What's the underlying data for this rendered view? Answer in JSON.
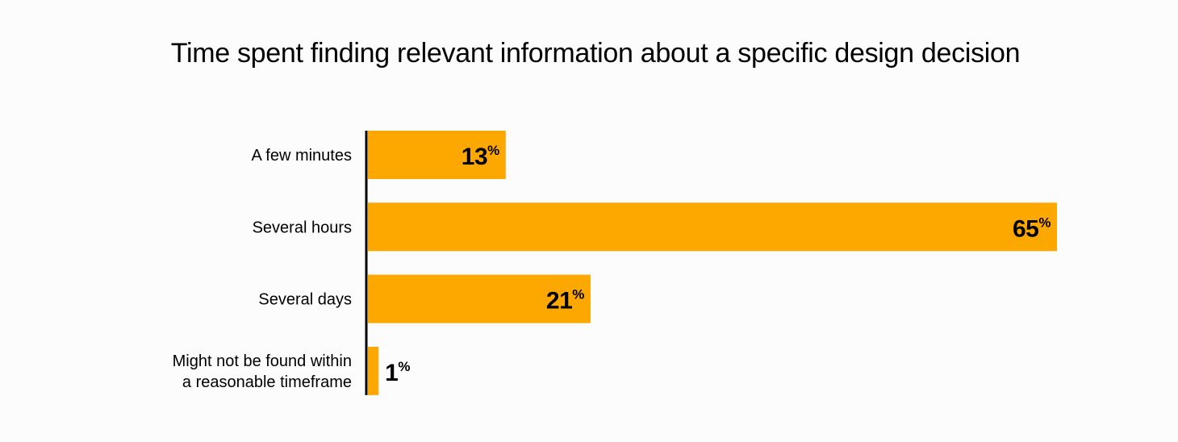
{
  "chart_data": {
    "type": "bar",
    "orientation": "horizontal",
    "title": "Time spent finding relevant information about a specific design decision",
    "categories": [
      [
        "A few minutes"
      ],
      [
        "Several hours"
      ],
      [
        "Several days"
      ],
      [
        "Might not be found within",
        "a reasonable timeframe"
      ]
    ],
    "values": [
      13,
      65,
      21,
      1
    ],
    "value_suffix": "%",
    "xlim": [
      0,
      65
    ],
    "grid": false,
    "legend": "none",
    "bar_color": "#fda701",
    "axis_color": "#000000"
  }
}
